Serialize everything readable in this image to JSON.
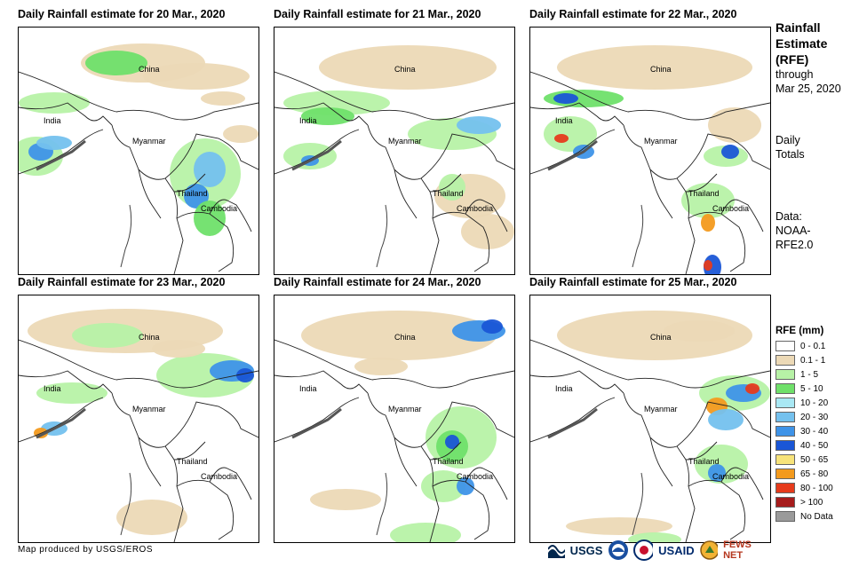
{
  "panels": [
    {
      "title": "Daily Rainfall estimate for 20 Mar., 2020"
    },
    {
      "title": "Daily Rainfall estimate for 21 Mar., 2020"
    },
    {
      "title": "Daily Rainfall estimate for 22 Mar., 2020"
    },
    {
      "title": "Daily Rainfall estimate for 23 Mar., 2020"
    },
    {
      "title": "Daily Rainfall estimate for 24 Mar., 2020"
    },
    {
      "title": "Daily Rainfall estimate for 25 Mar., 2020"
    }
  ],
  "map_labels": {
    "china": "China",
    "india": "India",
    "myanmar": "Myanmar",
    "thailand": "Thailand",
    "cambodia": "Cambodia"
  },
  "side": {
    "title_line1": "Rainfall",
    "title_line2": "Estimate",
    "title_line3": "(RFE)",
    "through": "through",
    "date": "Mar 25, 2020",
    "daily": "Daily",
    "totals": "Totals",
    "data_label": "Data:",
    "data_source1": "NOAA-",
    "data_source2": "RFE2.0"
  },
  "legend": {
    "title": "RFE (mm)",
    "items": [
      {
        "label": "0 - 0.1",
        "color": "#ffffff"
      },
      {
        "label": "0.1 - 1",
        "color": "#ecd9b6"
      },
      {
        "label": "1 - 5",
        "color": "#b7f2a6"
      },
      {
        "label": "5 - 10",
        "color": "#6fe06a"
      },
      {
        "label": "10 - 20",
        "color": "#a9e8f4"
      },
      {
        "label": "20 - 30",
        "color": "#74c1ee"
      },
      {
        "label": "30 - 40",
        "color": "#3e93e8"
      },
      {
        "label": "40 - 50",
        "color": "#1a56d6"
      },
      {
        "label": "50 - 65",
        "color": "#f7e37a"
      },
      {
        "label": "65 - 80",
        "color": "#f39a1d"
      },
      {
        "label": "80 - 100",
        "color": "#e63b1c"
      },
      {
        "label": "> 100",
        "color": "#a61c1c"
      },
      {
        "label": "No Data",
        "color": "#9a9a9a"
      }
    ]
  },
  "credit": "Map produced by USGS/EROS",
  "logos": {
    "usgs": "USGS",
    "usaid": "USAID",
    "fewsnet": "FEWS NET"
  }
}
